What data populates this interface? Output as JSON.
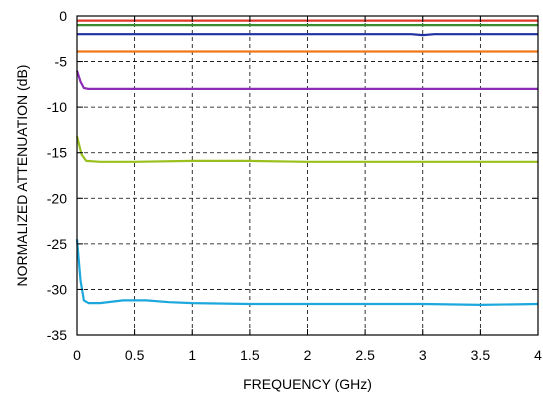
{
  "chart_data": {
    "type": "line",
    "title": "",
    "xlabel": "FREQUENCY (GHz)",
    "ylabel": "NORMALIZED ATTENUATION (dB)",
    "xlim": [
      0,
      4
    ],
    "ylim": [
      -35,
      0
    ],
    "xticks": [
      0,
      0.5,
      1,
      1.5,
      2,
      2.5,
      3,
      3.5,
      4
    ],
    "xtick_labels": [
      "0",
      "0.5",
      "1",
      "1.5",
      "2",
      "2.5",
      "3",
      "3.5",
      "4"
    ],
    "yticks": [
      0,
      -5,
      -10,
      -15,
      -20,
      -25,
      -30,
      -35
    ],
    "ytick_labels": [
      "0",
      "-5",
      "-10",
      "-15",
      "-20",
      "-25",
      "-30",
      "-35"
    ],
    "grid": true,
    "grid_style": "dashed",
    "legend": "none",
    "series": [
      {
        "color": "#e0382a",
        "x": [
          0,
          4
        ],
        "y": [
          -0.5,
          -0.5
        ]
      },
      {
        "color": "#3a8a2e",
        "x": [
          0,
          4
        ],
        "y": [
          -1.0,
          -1.0
        ]
      },
      {
        "color": "#1f2fa0",
        "x": [
          0,
          2.9,
          3.0,
          3.1,
          4
        ],
        "y": [
          -2.0,
          -2.0,
          -2.1,
          -2.0,
          -2.0
        ]
      },
      {
        "color": "#f07818",
        "x": [
          0,
          4
        ],
        "y": [
          -3.9,
          -3.9
        ]
      },
      {
        "color": "#8a2cb5",
        "x": [
          0,
          0.03,
          0.06,
          0.1,
          0.3,
          4
        ],
        "y": [
          -6.0,
          -7.2,
          -7.9,
          -8.0,
          -8.0,
          -8.0
        ]
      },
      {
        "color": "#9ac01e",
        "x": [
          0,
          0.04,
          0.08,
          0.2,
          0.5,
          1.0,
          1.5,
          2.0,
          2.5,
          3.0,
          3.5,
          4
        ],
        "y": [
          -13.2,
          -15.2,
          -15.9,
          -16.0,
          -16.0,
          -15.9,
          -15.9,
          -16.0,
          -16.0,
          -16.0,
          -16.0,
          -16.0
        ]
      },
      {
        "color": "#1ca8dc",
        "x": [
          0,
          0.03,
          0.06,
          0.1,
          0.2,
          0.4,
          0.6,
          0.8,
          1.0,
          1.5,
          2.0,
          2.5,
          3.0,
          3.5,
          4
        ],
        "y": [
          -24.5,
          -29.0,
          -31.2,
          -31.5,
          -31.5,
          -31.2,
          -31.2,
          -31.4,
          -31.5,
          -31.6,
          -31.6,
          -31.6,
          -31.6,
          -31.7,
          -31.6
        ]
      }
    ]
  }
}
